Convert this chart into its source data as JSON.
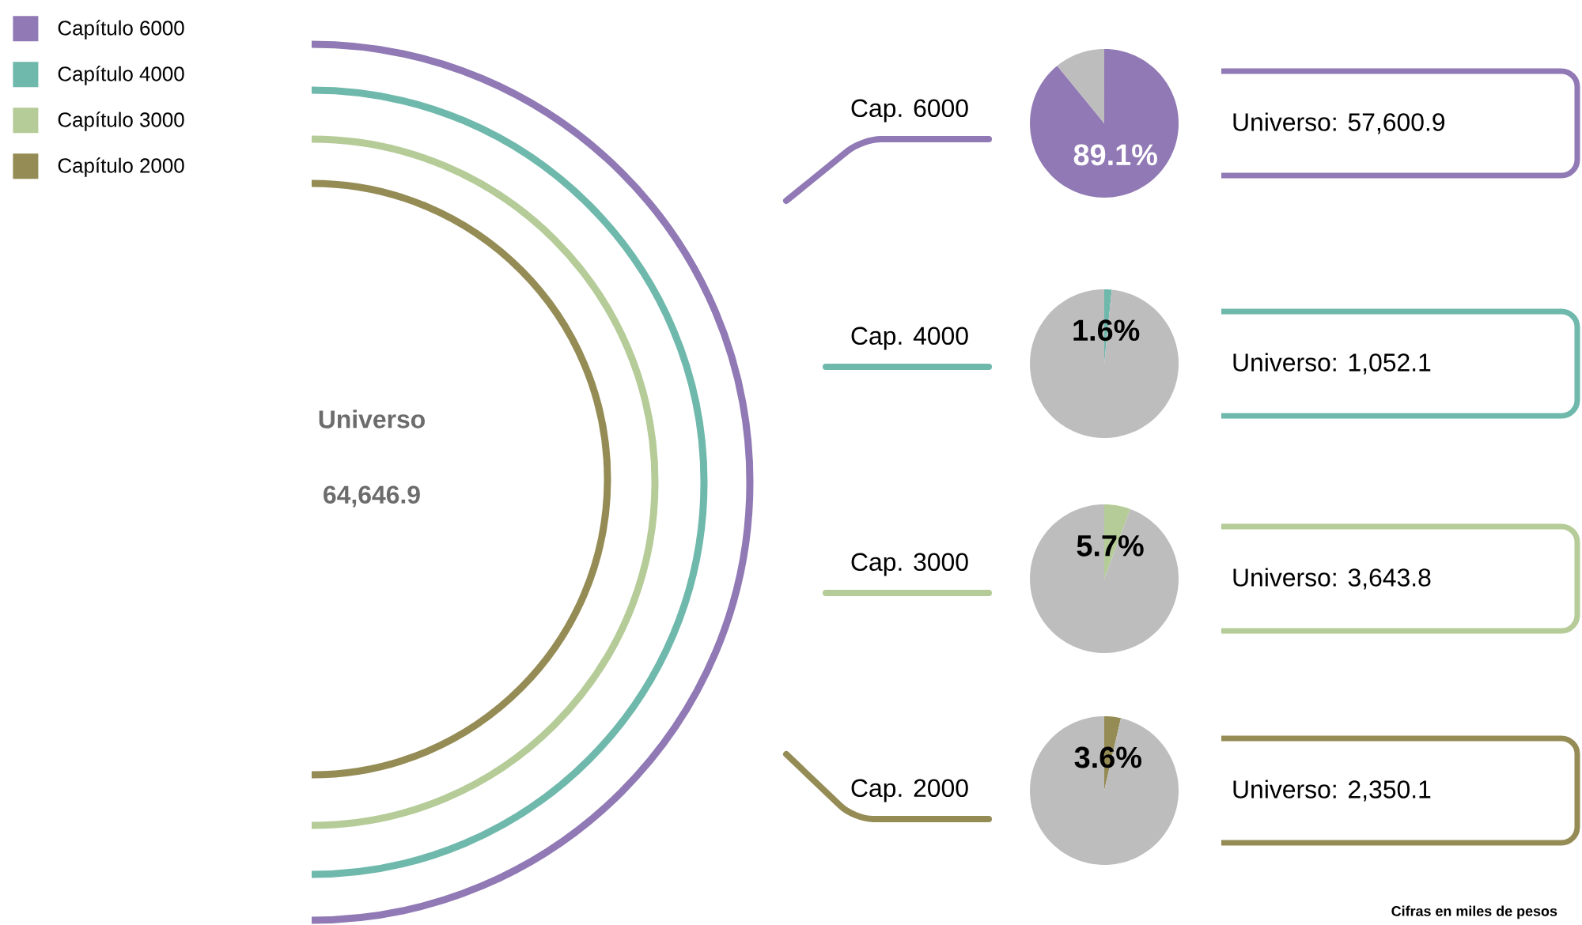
{
  "chart_data": [
    {
      "type": "other",
      "title": "Universo",
      "annotations": [
        "64,646.9",
        "Cifras en miles de pesos"
      ],
      "categories": [
        "Capítulo 6000",
        "Capítulo 4000",
        "Capítulo 3000",
        "Capítulo 2000"
      ],
      "colors": [
        "#9079b4",
        "#6fb8ac",
        "#b5cc98",
        "#958c55"
      ]
    },
    {
      "type": "pie",
      "title": "Cap. 6000",
      "categories": [
        null,
        null
      ],
      "values": [
        89.1,
        10.9
      ],
      "colors": [
        "#9079b4",
        "#bdbdbd"
      ],
      "value_labels": [
        "89.1%",
        null
      ],
      "annotations": [
        "Universo: 57,600.9"
      ]
    },
    {
      "type": "pie",
      "title": "Cap. 4000",
      "categories": [
        null,
        null
      ],
      "values": [
        1.6,
        98.4
      ],
      "colors": [
        "#6fb8ac",
        "#bdbdbd"
      ],
      "value_labels": [
        "1.6%",
        null
      ],
      "annotations": [
        "Universo: 1,052.1"
      ]
    },
    {
      "type": "pie",
      "title": "Cap. 3000",
      "categories": [
        null,
        null
      ],
      "values": [
        5.7,
        94.3
      ],
      "colors": [
        "#b5cc98",
        "#bdbdbd"
      ],
      "value_labels": [
        "5.7%",
        null
      ],
      "annotations": [
        "Universo: 3,643.8"
      ]
    },
    {
      "type": "pie",
      "title": "Cap. 2000",
      "categories": [
        null,
        null
      ],
      "values": [
        3.6,
        96.4
      ],
      "colors": [
        "#958c55",
        "#bdbdbd"
      ],
      "value_labels": [
        "3.6%",
        null
      ],
      "annotations": [
        "Universo: 2,350.1"
      ]
    }
  ]
}
